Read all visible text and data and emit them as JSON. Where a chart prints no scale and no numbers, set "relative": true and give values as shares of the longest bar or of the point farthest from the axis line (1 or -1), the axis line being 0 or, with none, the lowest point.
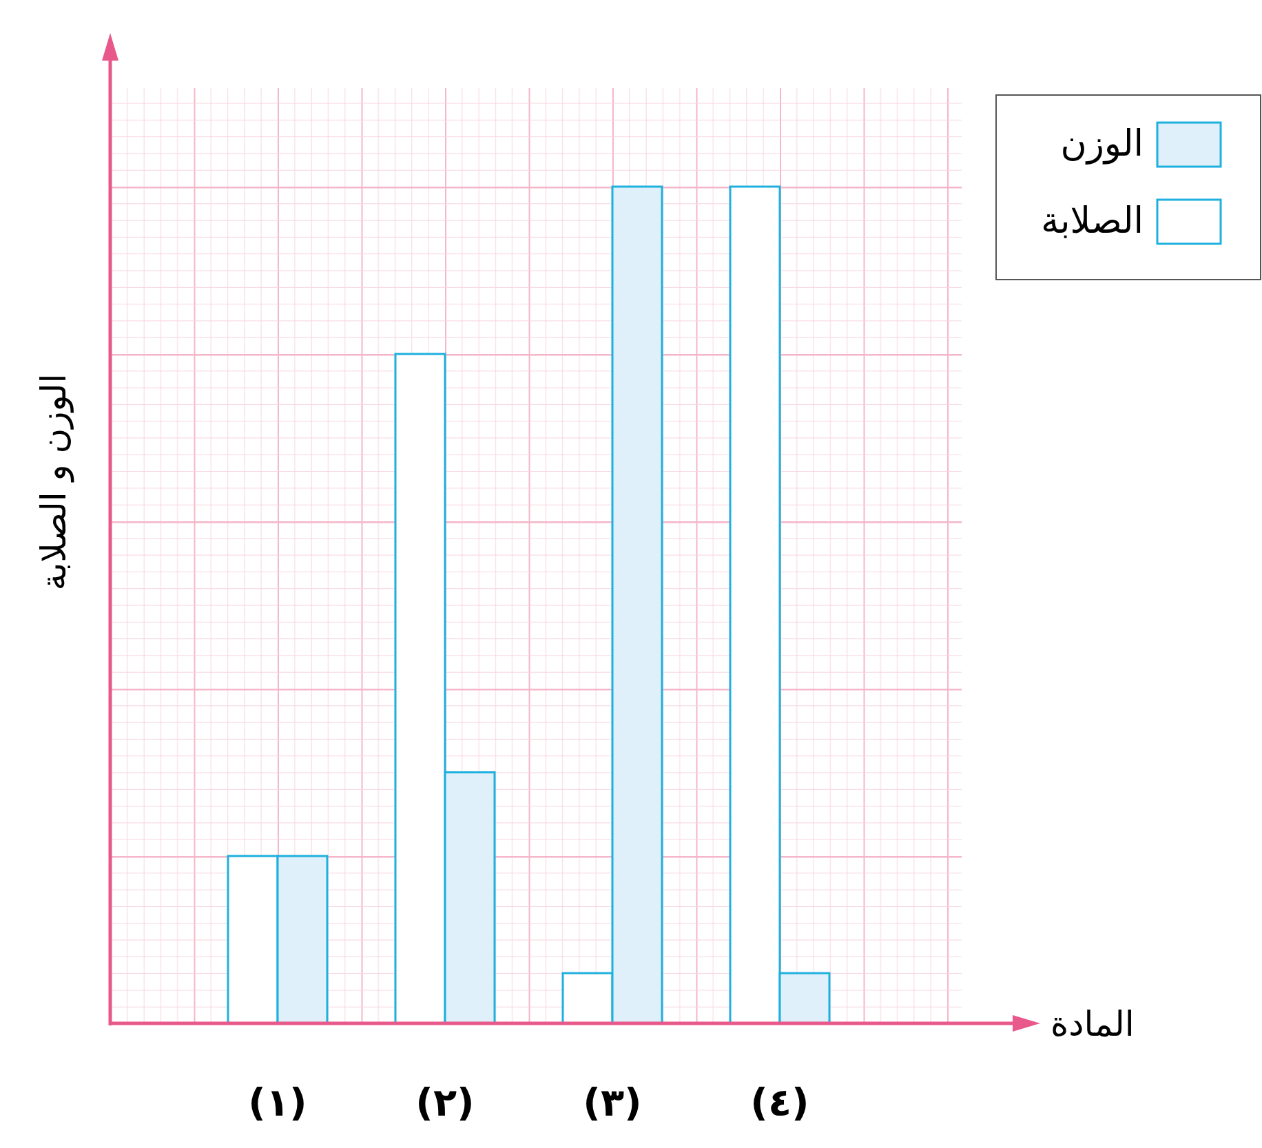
{
  "chart_data": {
    "type": "bar",
    "relative": true,
    "xlabel": "المادة",
    "ylabel": "الوزن و الصلابة",
    "categories": [
      "(١)",
      "(٢)",
      "(٣)",
      "(٤)"
    ],
    "series": [
      {
        "name": "الصلابة",
        "color": "#ffffff",
        "values": [
          0.2,
          0.8,
          0.06,
          1
        ]
      },
      {
        "name": "الوزن",
        "color": "#dff0fa",
        "values": [
          0.2,
          0.3,
          1,
          0.06
        ]
      }
    ],
    "legend": "top right"
  }
}
